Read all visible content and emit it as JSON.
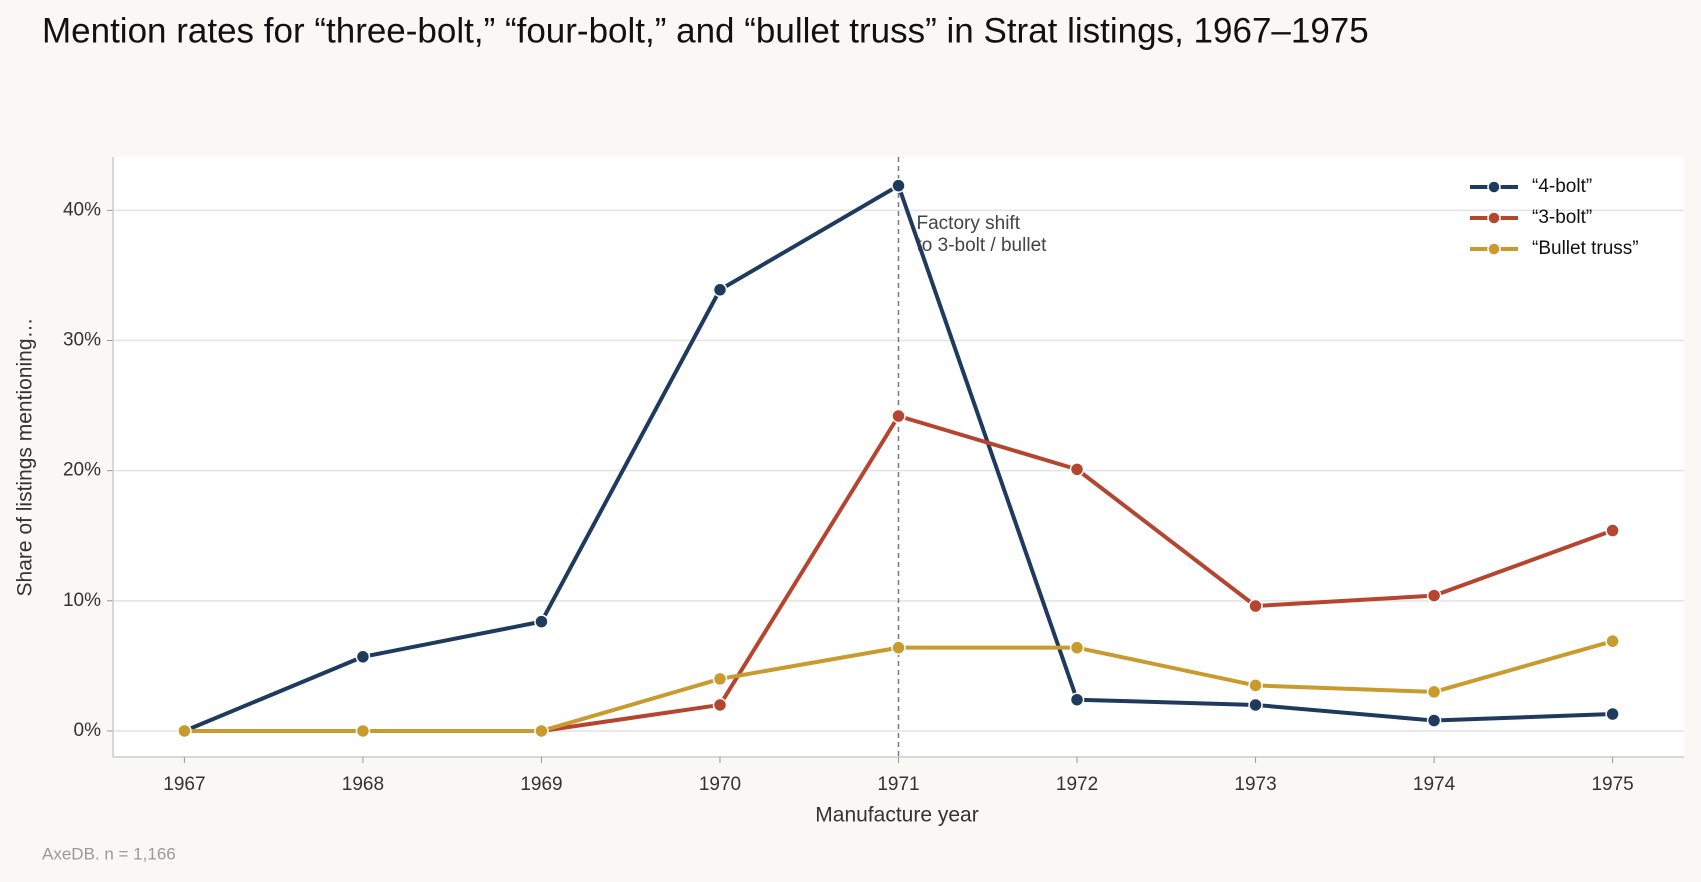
{
  "chart_data": {
    "type": "line",
    "title": "Mention rates for “three-bolt,” “four-bolt,” and “bullet truss” in Strat listings, 1967–1975",
    "x_label": "Manufacture year",
    "y_label": "Share of listings mentioning…",
    "source": "AxeDB. n = 1,166",
    "x": [
      1967,
      1968,
      1969,
      1970,
      1971,
      1972,
      1973,
      1974,
      1975
    ],
    "series": [
      {
        "name": "“4-bolt”",
        "color": "#1f3a5f",
        "values": [
          0,
          5.7,
          8.4,
          33.9,
          41.9,
          2.4,
          2.0,
          0.8,
          1.3
        ]
      },
      {
        "name": "“3-bolt”",
        "color": "#b5452f",
        "values": [
          0,
          0,
          0,
          2.0,
          24.2,
          20.1,
          9.6,
          10.4,
          15.4
        ]
      },
      {
        "name": "“Bullet truss”",
        "color": "#c99a2e",
        "values": [
          0,
          0,
          0,
          4.0,
          6.4,
          6.4,
          3.5,
          3.0,
          6.9
        ]
      }
    ],
    "xlim": [
      1966.6,
      1975.4
    ],
    "xticks": [
      1967,
      1968,
      1969,
      1970,
      1971,
      1972,
      1973,
      1974,
      1975
    ],
    "ylim": [
      -2,
      44.1
    ],
    "yticks": [
      {
        "value": 0,
        "label": "0%"
      },
      {
        "value": 10,
        "label": "10%"
      },
      {
        "value": 20,
        "label": "20%"
      },
      {
        "value": 30,
        "label": "30%"
      },
      {
        "value": 40,
        "label": "40%"
      }
    ],
    "grid": true,
    "legend": "upper-right",
    "annotation": {
      "x": 1971,
      "lines": [
        "Factory shift",
        "to 3-bolt / bullet"
      ]
    }
  }
}
